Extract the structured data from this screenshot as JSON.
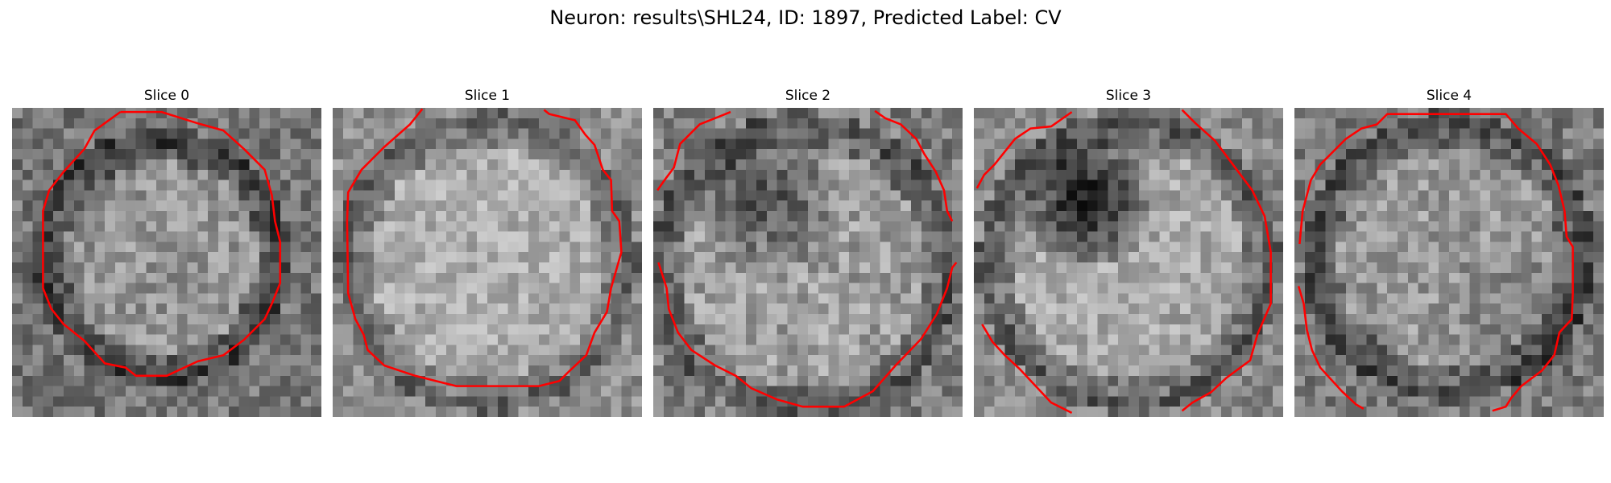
{
  "figure": {
    "title": "Neuron: results\\SHL24, ID: 1897, Predicted Label: CV",
    "contour_color": "#ff0000",
    "colormap": "gray",
    "grid_size": 30,
    "panels": [
      {
        "label": "Slice 0"
      },
      {
        "label": "Slice 1"
      },
      {
        "label": "Slice 2"
      },
      {
        "label": "Slice 3"
      },
      {
        "label": "Slice 4"
      }
    ]
  }
}
